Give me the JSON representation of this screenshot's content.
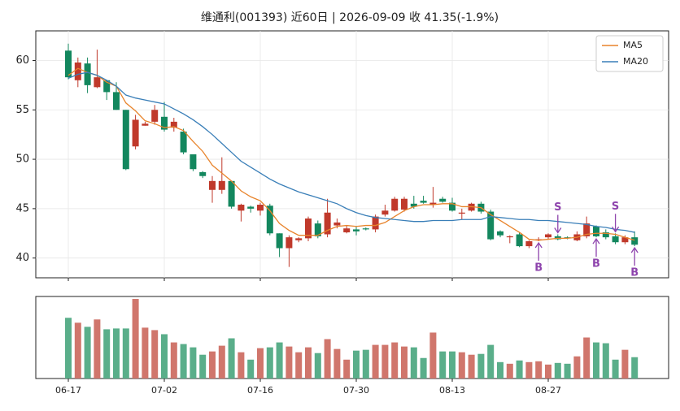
{
  "chart_data": {
    "type": "candlestick",
    "title": "维通利(001393) 近60日  |  2026-09-09 收 41.35(-1.9%)",
    "categories": [
      "06-17",
      null,
      null,
      null,
      null,
      null,
      null,
      null,
      null,
      null,
      "07-02",
      null,
      null,
      null,
      null,
      null,
      null,
      null,
      null,
      null,
      "07-16",
      null,
      null,
      null,
      null,
      null,
      null,
      null,
      null,
      null,
      "07-30",
      null,
      null,
      null,
      null,
      null,
      null,
      null,
      null,
      null,
      "08-13",
      null,
      null,
      null,
      null,
      null,
      null,
      null,
      null,
      null,
      "08-27",
      null,
      null,
      null,
      null,
      null,
      null,
      null,
      null,
      null
    ],
    "open": [
      61,
      58,
      59.7,
      57.3,
      58,
      56.8,
      55,
      51.3,
      53.4,
      53.8,
      54.3,
      53.2,
      52.8,
      50.5,
      48.7,
      46.9,
      46.9,
      47.8,
      44.8,
      45.2,
      44.8,
      45.3,
      42.5,
      41,
      41.8,
      42,
      43.5,
      42.4,
      43.3,
      42.6,
      42.9,
      43,
      42.9,
      44.4,
      44.8,
      44.9,
      45.5,
      45.8,
      45.4,
      46,
      45.6,
      44.5,
      44.8,
      45.5,
      44.7,
      42.7,
      42.1,
      42.4,
      41.2,
      41.8,
      42.1,
      42.2,
      42.1,
      41.8,
      42.2,
      43.2,
      42.6,
      42.2,
      41.6,
      42.1
    ],
    "high": [
      61.7,
      60.3,
      60.3,
      61.1,
      58,
      57.8,
      55,
      54.5,
      53.8,
      55.5,
      55.8,
      54.2,
      53.1,
      50.5,
      48.8,
      48.3,
      50.2,
      47.8,
      45.5,
      45.3,
      45.6,
      45.5,
      42.5,
      42.3,
      42.1,
      44.2,
      43.8,
      46,
      44,
      43.3,
      43.2,
      43.1,
      44.4,
      45.4,
      46.2,
      46.2,
      46.3,
      46.3,
      47.2,
      46.2,
      46.1,
      45,
      45.6,
      45.7,
      44.9,
      42.8,
      42.3,
      42.6,
      41.8,
      42.1,
      42.5,
      42.4,
      42.2,
      42.7,
      44.2,
      43.3,
      42.9,
      42.5,
      42.3,
      42.7
    ],
    "low": [
      58.1,
      57.3,
      56.7,
      57.2,
      56,
      55,
      48.9,
      51,
      53.4,
      53.5,
      52.8,
      52.8,
      50.5,
      48.8,
      48.1,
      45.6,
      46.5,
      45,
      43.7,
      44.6,
      44.3,
      42.3,
      40.1,
      39.1,
      41.6,
      41.7,
      42,
      42.1,
      43,
      42.5,
      42.3,
      42.8,
      42.6,
      44.2,
      44.7,
      44.7,
      45,
      45.5,
      45.1,
      45.6,
      44.7,
      43.9,
      44.7,
      44.5,
      41.8,
      42.1,
      41.5,
      41.1,
      41,
      41.7,
      41.9,
      41.8,
      41.9,
      41.7,
      42,
      42.1,
      41.9,
      41.4,
      41.4,
      41.2
    ],
    "close": [
      58.3,
      59.8,
      57.5,
      58.3,
      56.8,
      55,
      49,
      54,
      53.6,
      55,
      53,
      53.8,
      50.7,
      49,
      48.3,
      47.8,
      47.8,
      45.2,
      45.4,
      45,
      45.4,
      42.5,
      41,
      42.1,
      42,
      44,
      42.2,
      44.6,
      43.6,
      43,
      42.7,
      42.9,
      44.2,
      44.8,
      46,
      46,
      45.2,
      45.6,
      45.6,
      45.7,
      44.8,
      44.6,
      45.5,
      44.7,
      41.9,
      42.3,
      42.2,
      41.2,
      41.7,
      41.9,
      42.4,
      41.9,
      42,
      42.4,
      43.5,
      42.2,
      42.1,
      41.6,
      42.1,
      41.35
    ],
    "up_color": "#c0392b",
    "down_color": "#13875e",
    "series": [
      {
        "name": "MA5",
        "color": "#e8842c",
        "values": [
          58.5,
          59.2,
          58.8,
          58.5,
          57.8,
          57.4,
          55.7,
          54.9,
          53.9,
          53.6,
          53.2,
          53.3,
          52.9,
          51.8,
          50.8,
          49.4,
          48.6,
          47.8,
          46.8,
          46.2,
          45.8,
          44.8,
          43.5,
          42.8,
          42.3,
          42.3,
          42.3,
          42.8,
          43.2,
          43.3,
          43.2,
          43.3,
          43.3,
          43.6,
          44.2,
          44.8,
          45.2,
          45.4,
          45.4,
          45.5,
          45.5,
          45.2,
          45.2,
          45.1,
          44.4,
          43.8,
          43.2,
          42.6,
          41.9,
          41.8,
          41.9,
          42,
          42,
          42.1,
          42.4,
          42.5,
          42.5,
          42.4,
          42.1,
          41.8
        ]
      },
      {
        "name": "MA20",
        "color": "#3a7fb8",
        "values": [
          58.2,
          58.6,
          58.8,
          58.5,
          58.0,
          57.4,
          56.5,
          56.2,
          56.0,
          55.8,
          55.6,
          55.1,
          54.6,
          54.0,
          53.3,
          52.5,
          51.6,
          50.7,
          49.8,
          49.2,
          48.6,
          48.0,
          47.5,
          47.1,
          46.7,
          46.4,
          46.1,
          45.8,
          45.5,
          45.0,
          44.6,
          44.3,
          44.1,
          44.0,
          43.9,
          43.8,
          43.7,
          43.7,
          43.8,
          43.8,
          43.8,
          43.9,
          43.9,
          43.9,
          44.2,
          44.1,
          44.0,
          43.9,
          43.9,
          43.8,
          43.8,
          43.7,
          43.6,
          43.5,
          43.4,
          43.2,
          43.1,
          42.9,
          42.8,
          42.6
        ]
      }
    ],
    "legend": "upper right",
    "ylim": [
      38,
      63
    ],
    "yticks": [
      40,
      45,
      50,
      55,
      60
    ],
    "grid": true,
    "volume": [
      74,
      68,
      63,
      72,
      60,
      61,
      61,
      97,
      62,
      59,
      54,
      44,
      42,
      38,
      29,
      33,
      40,
      49,
      32,
      23,
      37,
      38,
      44,
      39,
      32,
      38,
      31,
      48,
      36,
      23,
      34,
      35,
      41,
      41,
      44,
      39,
      38,
      25,
      56,
      33,
      33,
      32,
      29,
      30,
      41,
      20,
      18,
      22,
      20,
      21,
      17,
      19,
      18,
      27,
      50,
      44,
      43,
      23,
      35,
      26
    ],
    "volume_ylim": [
      0,
      100
    ],
    "volume_up_color": "#d0766c",
    "volume_down_color": "#5aae8a",
    "signals": [
      {
        "label": "B",
        "index": 49
      },
      {
        "label": "S",
        "index": 51
      },
      {
        "label": "B",
        "index": 55
      },
      {
        "label": "S",
        "index": 57
      },
      {
        "label": "B",
        "index": 59
      }
    ],
    "signal_color": "#8e44ad"
  }
}
